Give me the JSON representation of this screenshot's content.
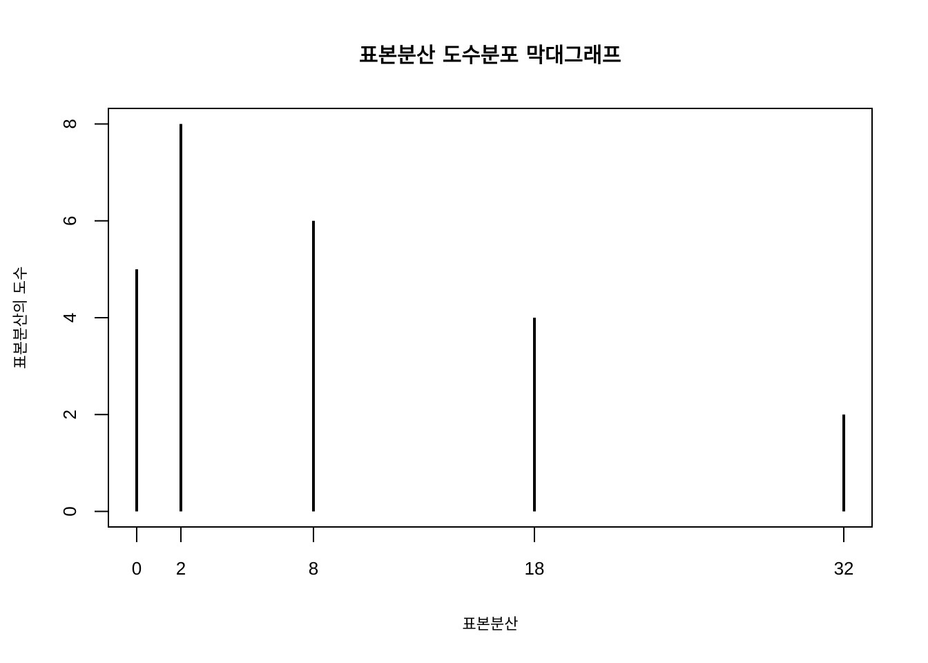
{
  "chart_data": {
    "type": "bar",
    "title": "표본분산 도수분포 막대그래프",
    "xlabel": "표본분산",
    "ylabel": "표본분산의 도수",
    "x": [
      0,
      2,
      8,
      18,
      32
    ],
    "values": [
      5,
      8,
      6,
      4,
      2
    ],
    "x_ticks": [
      "0",
      "2",
      "8",
      "18",
      "32"
    ],
    "y_ticks": [
      "0",
      "2",
      "4",
      "6",
      "8"
    ],
    "xlim": [
      -1.28,
      33.28
    ],
    "ylim": [
      -0.32,
      8.32
    ],
    "grid": false,
    "bar_color": "#000000"
  }
}
